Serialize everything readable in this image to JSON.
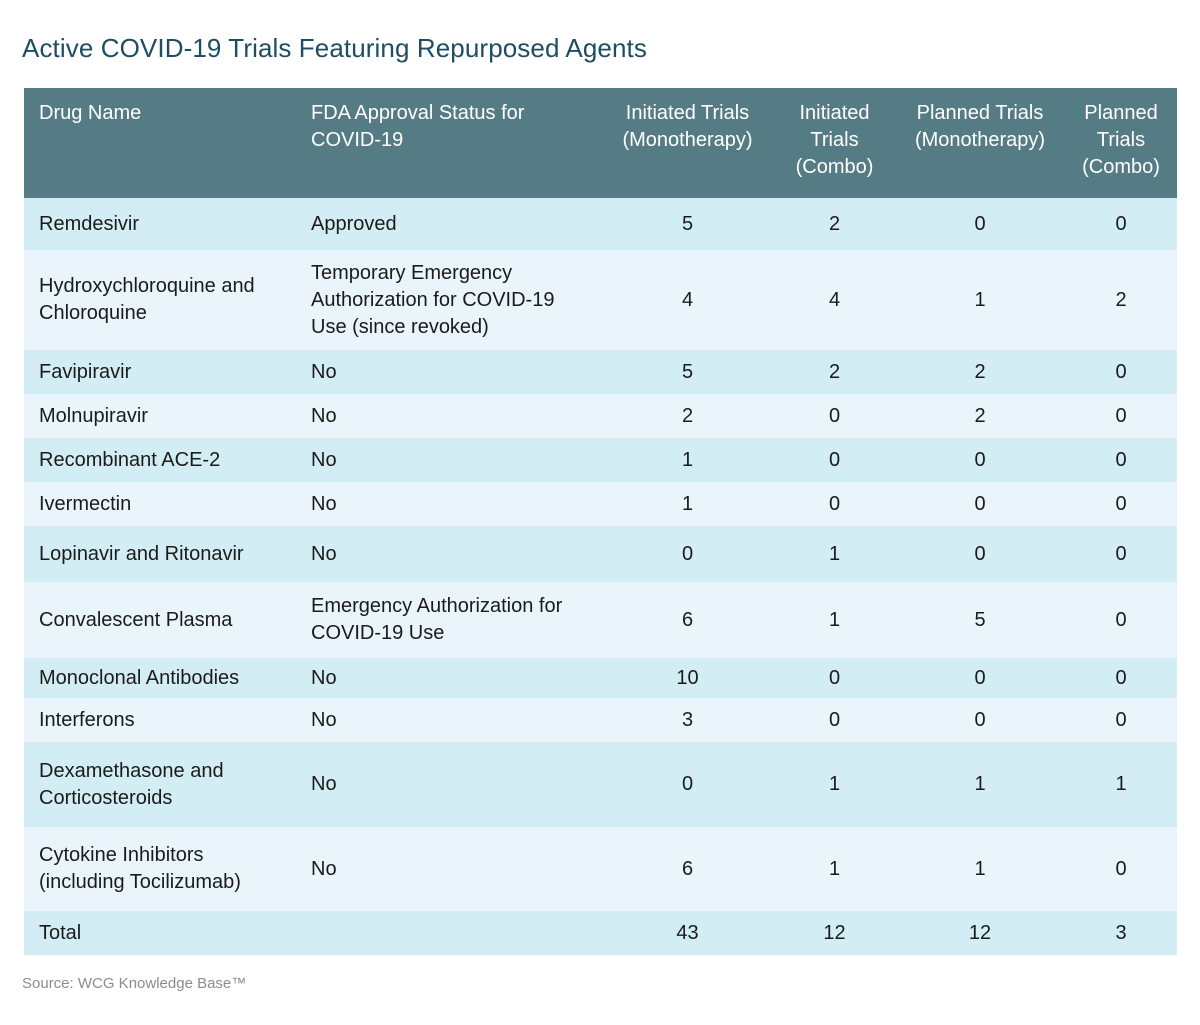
{
  "title": "Active COVID-19 Trials Featuring Repurposed Agents",
  "headers": {
    "drug": "Drug Name",
    "status": "FDA Approval Status for COVID-19",
    "initiated_mono": "Initiated Trials (Monotherapy)",
    "initiated_combo": "Initiated Trials (Combo)",
    "planned_mono": "Planned Trials (Monotherapy)",
    "planned_combo": "Planned Trials (Combo)"
  },
  "rows": [
    {
      "drug": "Remdesivir",
      "status": "Approved",
      "im": "5",
      "ic": "2",
      "pm": "0",
      "pc": "0"
    },
    {
      "drug": "Hydroxychloroquine and Chloroquine",
      "status": "Temporary Emergency Authorization for COVID-19 Use (since revoked)",
      "im": "4",
      "ic": "4",
      "pm": "1",
      "pc": "2"
    },
    {
      "drug": "Favipiravir",
      "status": "No",
      "im": "5",
      "ic": "2",
      "pm": "2",
      "pc": "0"
    },
    {
      "drug": "Molnupiravir",
      "status": "No",
      "im": "2",
      "ic": "0",
      "pm": "2",
      "pc": "0"
    },
    {
      "drug": "Recombinant ACE-2",
      "status": "No",
      "im": "1",
      "ic": "0",
      "pm": "0",
      "pc": "0"
    },
    {
      "drug": "Ivermectin",
      "status": "No",
      "im": "1",
      "ic": "0",
      "pm": "0",
      "pc": "0"
    },
    {
      "drug": "Lopinavir and Ritonavir",
      "status": "No",
      "im": "0",
      "ic": "1",
      "pm": "0",
      "pc": "0"
    },
    {
      "drug": "Convalescent Plasma",
      "status": "Emergency Authorization for COVID-19 Use",
      "im": "6",
      "ic": "1",
      "pm": "5",
      "pc": "0"
    },
    {
      "drug": "Monoclonal Antibodies",
      "status": "No",
      "im": "10",
      "ic": "0",
      "pm": "0",
      "pc": "0"
    },
    {
      "drug": "Interferons",
      "status": "No",
      "im": "3",
      "ic": "0",
      "pm": "0",
      "pc": "0"
    },
    {
      "drug": "Dexamethasone and Corticosteroids",
      "status": "No",
      "im": "0",
      "ic": "1",
      "pm": "1",
      "pc": "1"
    },
    {
      "drug": "Cytokine Inhibitors (including Tocilizumab)",
      "status": "No",
      "im": "6",
      "ic": "1",
      "pm": "1",
      "pc": "0"
    }
  ],
  "total": {
    "label": "Total",
    "im": "43",
    "ic": "12",
    "pm": "12",
    "pc": "3"
  },
  "source": "Source: WCG Knowledge Base™",
  "colors": {
    "title": "#1f4d61",
    "header_bg": "#557c85",
    "row_dark": "#d3edf5",
    "row_light": "#e9f5fa"
  }
}
